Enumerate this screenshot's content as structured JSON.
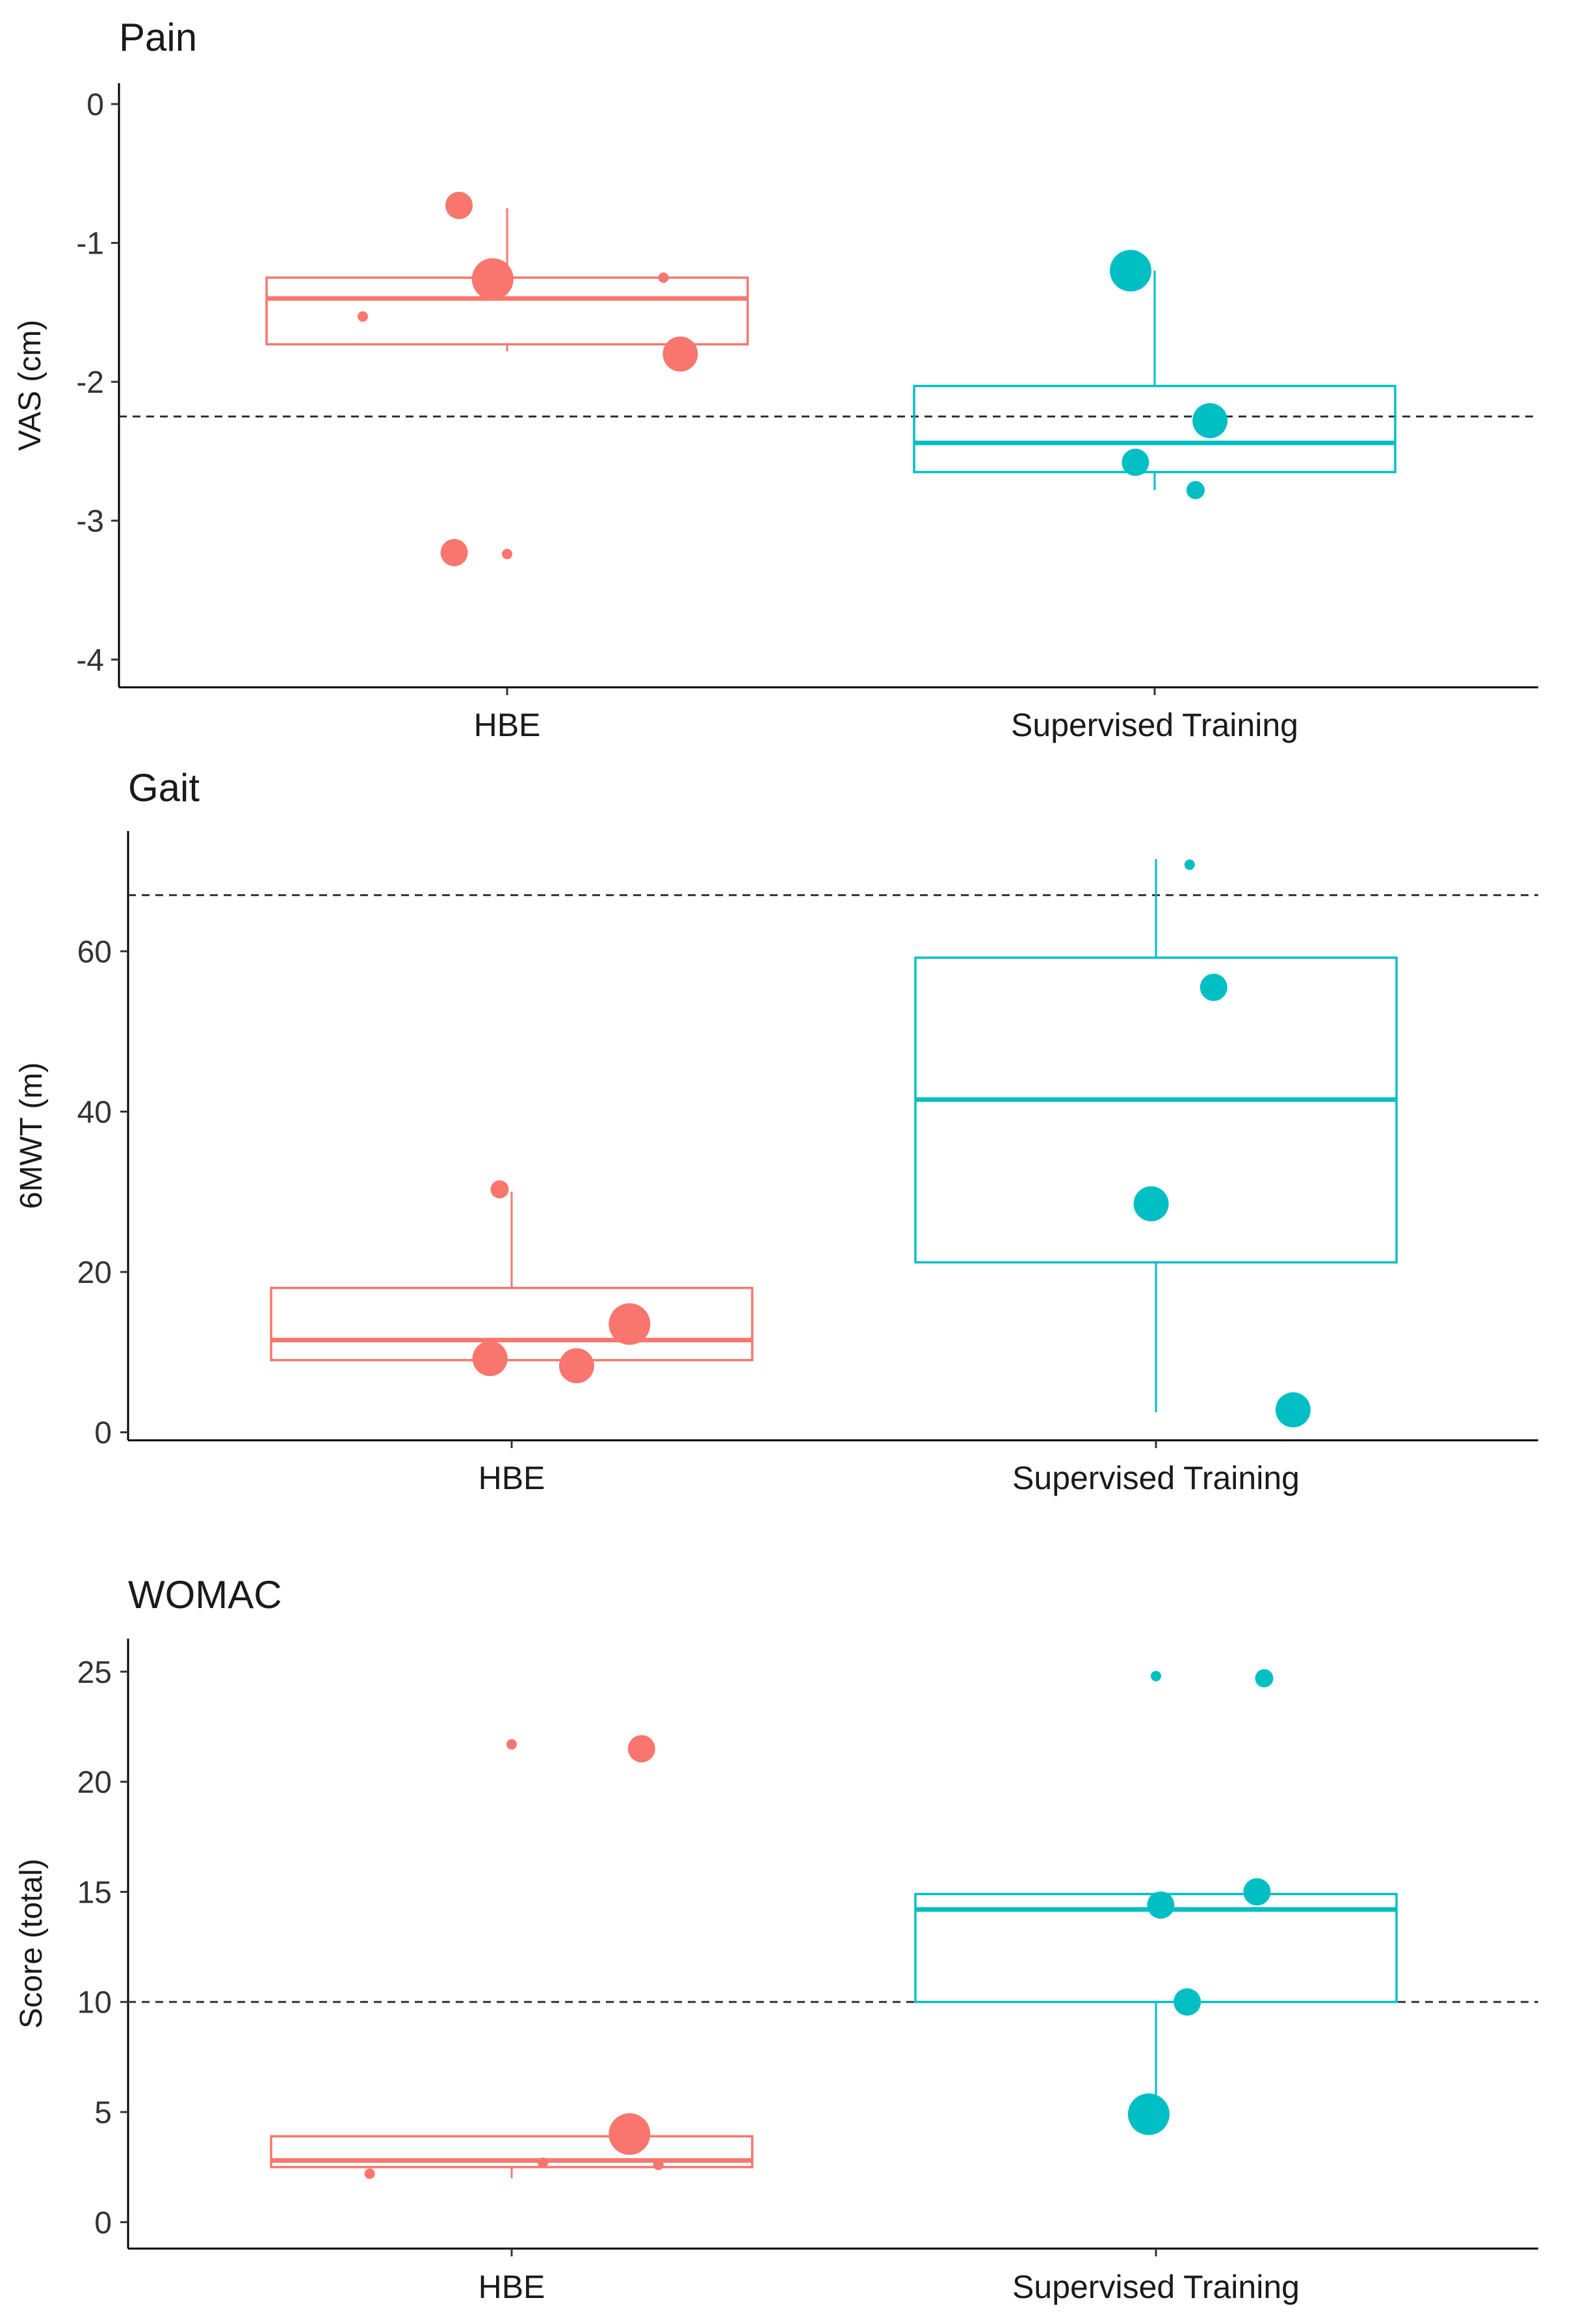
{
  "chart_data": [
    {
      "type": "box",
      "title": "Pain",
      "xlabel": "",
      "ylabel": "VAS (cm)",
      "ylim": [
        -4.2,
        0.15
      ],
      "yticks": [
        0,
        -1,
        -2,
        -3,
        -4
      ],
      "tick_labels": [
        "0",
        "-1",
        "-2",
        "-3",
        "-4"
      ],
      "reference_line": -2.25,
      "categories": [
        "HBE",
        "Supervised Training"
      ],
      "series": [
        {
          "name": "HBE",
          "color": "#F8766D",
          "box": {
            "whisker_low": -1.78,
            "q1": -1.73,
            "median": -1.4,
            "q3": -1.25,
            "whisker_high": -0.75
          },
          "points": [
            {
              "offset": -0.2,
              "y": -0.73,
              "size": 3
            },
            {
              "offset": -0.06,
              "y": -1.26,
              "size": 5
            },
            {
              "offset": 0.65,
              "y": -1.25,
              "size": 1
            },
            {
              "offset": -0.6,
              "y": -1.53,
              "size": 1
            },
            {
              "offset": 0.72,
              "y": -1.8,
              "size": 4
            },
            {
              "offset": -0.22,
              "y": -3.23,
              "size": 3
            },
            {
              "offset": 0.0,
              "y": -3.24,
              "size": 1
            }
          ]
        },
        {
          "name": "Supervised Training",
          "color": "#00BFC4",
          "box": {
            "whisker_low": -2.78,
            "q1": -2.65,
            "median": -2.44,
            "q3": -2.03,
            "whisker_high": -1.2
          },
          "points": [
            {
              "offset": -0.1,
              "y": -1.2,
              "size": 5
            },
            {
              "offset": 0.23,
              "y": -2.28,
              "size": 4
            },
            {
              "offset": -0.08,
              "y": -2.58,
              "size": 3
            },
            {
              "offset": 0.17,
              "y": -2.78,
              "size": 2
            }
          ]
        }
      ]
    },
    {
      "type": "box",
      "title": "Gait",
      "xlabel": "",
      "ylabel": "6MWT (m)",
      "ylim": [
        -1,
        75
      ],
      "yticks": [
        0,
        20,
        40,
        60
      ],
      "tick_labels": [
        "0",
        "20",
        "40",
        "60"
      ],
      "reference_line": 67,
      "categories": [
        "HBE",
        "Supervised Training"
      ],
      "series": [
        {
          "name": "HBE",
          "color": "#F8766D",
          "box": {
            "whisker_low": 9,
            "q1": 9,
            "median": 11.5,
            "q3": 18,
            "whisker_high": 30
          },
          "points": [
            {
              "offset": -0.05,
              "y": 30.3,
              "size": 2
            },
            {
              "offset": -0.09,
              "y": 9.2,
              "size": 4
            },
            {
              "offset": 0.27,
              "y": 8.3,
              "size": 4
            },
            {
              "offset": 0.49,
              "y": 13.5,
              "size": 5
            }
          ]
        },
        {
          "name": "Supervised Training",
          "color": "#00BFC4",
          "box": {
            "whisker_low": 2.5,
            "q1": 21.2,
            "median": 41.5,
            "q3": 59.2,
            "whisker_high": 71.5
          },
          "points": [
            {
              "offset": 0.14,
              "y": 70.8,
              "size": 1
            },
            {
              "offset": 0.24,
              "y": 55.5,
              "size": 3
            },
            {
              "offset": -0.02,
              "y": 28.5,
              "size": 4
            },
            {
              "offset": 0.57,
              "y": 2.8,
              "size": 4
            }
          ]
        }
      ]
    },
    {
      "type": "box",
      "title": "WOMAC",
      "xlabel": "",
      "ylabel": "Score (total)",
      "ylim": [
        -1.2,
        26.5
      ],
      "yticks": [
        0,
        5,
        10,
        15,
        20,
        25
      ],
      "tick_labels": [
        "0",
        "5",
        "10",
        "15",
        "20",
        "25"
      ],
      "reference_line": 10,
      "categories": [
        "HBE",
        "Supervised Training"
      ],
      "series": [
        {
          "name": "HBE",
          "color": "#F8766D",
          "box": {
            "whisker_low": 2,
            "q1": 2.5,
            "median": 2.8,
            "q3": 3.9,
            "whisker_high": 3.9
          },
          "points": [
            {
              "offset": 0.0,
              "y": 21.7,
              "size": 1
            },
            {
              "offset": 0.54,
              "y": 21.5,
              "size": 3
            },
            {
              "offset": 0.49,
              "y": 4.0,
              "size": 5
            },
            {
              "offset": -0.59,
              "y": 2.2,
              "size": 1
            },
            {
              "offset": 0.13,
              "y": 2.7,
              "size": 1
            },
            {
              "offset": 0.61,
              "y": 2.6,
              "size": 1
            }
          ]
        },
        {
          "name": "Supervised Training",
          "color": "#00BFC4",
          "box": {
            "whisker_low": 4.8,
            "q1": 10,
            "median": 14.2,
            "q3": 14.9,
            "whisker_high": 14.9
          },
          "points": [
            {
              "offset": 0.0,
              "y": 24.8,
              "size": 1
            },
            {
              "offset": 0.45,
              "y": 24.7,
              "size": 2
            },
            {
              "offset": 0.02,
              "y": 14.4,
              "size": 3
            },
            {
              "offset": 0.42,
              "y": 15.0,
              "size": 3
            },
            {
              "offset": 0.13,
              "y": 10.0,
              "size": 3
            },
            {
              "offset": -0.03,
              "y": 4.9,
              "size": 5
            }
          ]
        }
      ]
    }
  ]
}
